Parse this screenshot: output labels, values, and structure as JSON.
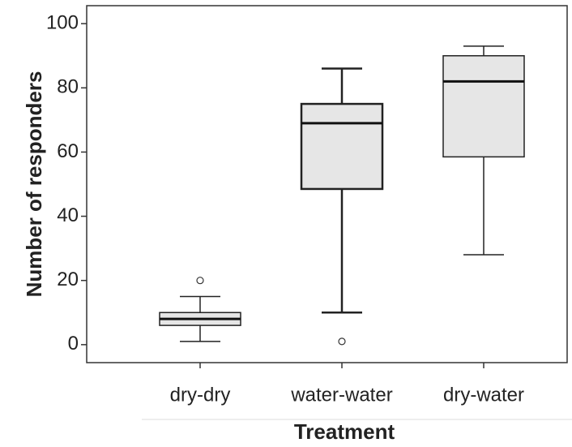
{
  "chart_data": {
    "type": "box",
    "x_label": "Treatment",
    "y_label": "Number of responders",
    "categories": [
      "dry-dry",
      "water-water",
      "dry-water"
    ],
    "boxes": [
      {
        "whisker_low": 1,
        "q1": 6,
        "median": 8,
        "q3": 10,
        "whisker_high": 15,
        "outliers": [
          20
        ]
      },
      {
        "whisker_low": 10,
        "q1": 48.5,
        "median": 69,
        "q3": 75,
        "whisker_high": 86,
        "outliers": [
          1
        ]
      },
      {
        "whisker_low": 28,
        "q1": 58.5,
        "median": 82,
        "q3": 90,
        "whisker_high": 93,
        "outliers": []
      }
    ],
    "color": "#e6e6e6",
    "ylim": [
      -5.6,
      105.6
    ],
    "yticks": [
      0,
      20,
      40,
      60,
      80,
      100
    ]
  }
}
